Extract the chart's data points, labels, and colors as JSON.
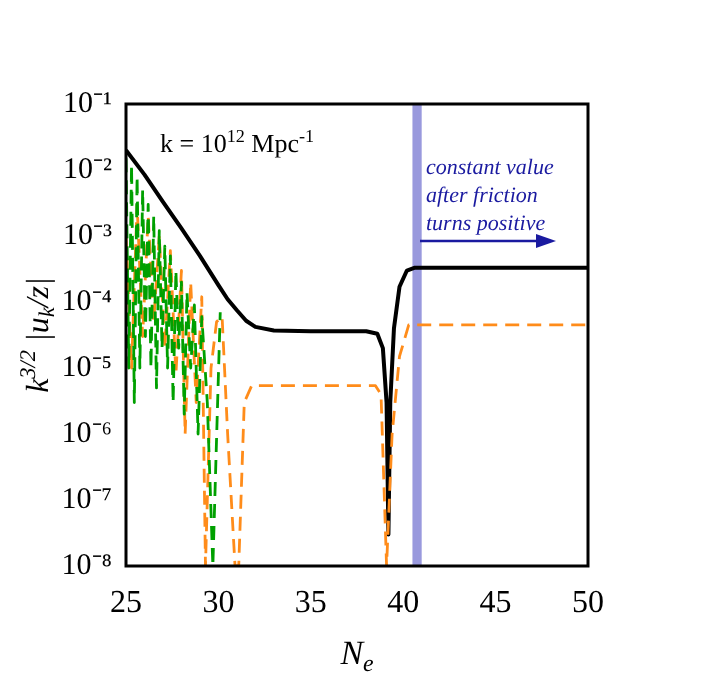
{
  "chart_data": {
    "type": "line",
    "xlabel": "N$_{e}$",
    "ylabel": "k$^{3/2}$ |u$_{k}$/z|",
    "xlim": [
      25,
      50
    ],
    "xticks": [
      25,
      30,
      35,
      40,
      45,
      50
    ],
    "ylim": [
      1e-08,
      0.1
    ],
    "log": "y",
    "yticks": [
      {
        "value": 0.1,
        "label": "10⁻¹"
      },
      {
        "value": 0.01,
        "label": "10⁻²"
      },
      {
        "value": 0.001,
        "label": "10⁻³"
      },
      {
        "value": 0.0001,
        "label": "10⁻⁴"
      },
      {
        "value": 1e-05,
        "label": "10⁻⁵"
      },
      {
        "value": 1e-06,
        "label": "10⁻⁶"
      },
      {
        "value": 1e-07,
        "label": "10⁻⁷"
      },
      {
        "value": 1e-08,
        "label": "10⁻⁸"
      }
    ],
    "grid": false,
    "legend": false,
    "series": [
      {
        "color": "#00a000",
        "line_style": "dashed",
        "x": [
          25,
          25.15,
          25.3,
          25.45,
          25.6,
          25.75,
          25.9,
          26.05,
          26.2,
          26.35,
          26.5,
          26.65,
          26.8,
          26.95,
          27.1,
          27.25,
          27.4,
          27.55,
          27.7,
          27.85,
          28,
          28.15,
          28.3,
          28.5,
          28.7,
          28.9,
          29.1,
          29.4,
          29.7,
          30.1
        ],
        "values": [
          0.015,
          1e-05,
          0.012,
          3e-06,
          0.008,
          1e-05,
          0.005,
          3e-05,
          0.003,
          1e-05,
          0.002,
          5e-06,
          0.0012,
          2e-05,
          0.0007,
          1e-05,
          0.0005,
          3e-06,
          0.0003,
          2e-05,
          0.0002,
          2e-06,
          0.00014,
          1e-05,
          9e-05,
          1e-06,
          6e-05,
          3e-06,
          1e-08,
          7e-05
        ]
      },
      {
        "color": "#ff8c1a",
        "line_style": "dashed",
        "x": [
          25,
          25.3,
          25.6,
          25.9,
          26.2,
          26.5,
          26.8,
          27.1,
          27.4,
          27.7,
          28,
          28.2,
          28.5,
          28.8,
          29.1,
          29.3,
          29.6,
          29.9,
          30.2,
          30.5,
          30.9,
          31.1,
          31.4,
          31.8,
          38.5,
          38.8,
          39.1,
          39.4,
          39.8,
          40.3,
          50
        ],
        "values": [
          0.001,
          1e-05,
          0.003,
          3e-05,
          0.002,
          5e-05,
          0.001,
          2e-05,
          0.0006,
          8e-06,
          0.0003,
          1e-06,
          0.0002,
          3e-06,
          0.00012,
          1e-08,
          1e-05,
          5e-05,
          6e-05,
          1e-06,
          1e-08,
          1e-08,
          3e-06,
          5.4e-06,
          5.4e-06,
          4e-06,
          1e-08,
          1e-06,
          1.5e-05,
          4.5e-05,
          4.5e-05
        ]
      },
      {
        "color": "#000000",
        "line_style": "solid",
        "x": [
          25,
          26,
          27,
          28,
          29,
          30,
          30.5,
          31,
          31.5,
          32,
          33,
          35,
          38,
          38.6,
          38.9,
          39.1,
          39.2,
          39.3,
          39.5,
          39.8,
          40.2,
          40.6,
          50
        ],
        "values": [
          0.02,
          0.0085,
          0.0033,
          0.0013,
          0.0005,
          0.00018,
          0.00011,
          7.5e-05,
          5.2e-05,
          4.2e-05,
          3.7e-05,
          3.6e-05,
          3.6e-05,
          3.3e-05,
          2e-05,
          3e-06,
          3e-08,
          3e-06,
          4e-05,
          0.00017,
          0.0003,
          0.00033,
          0.00033
        ]
      }
    ],
    "bands": [
      {
        "axis": "x",
        "from": 40.5,
        "to": 41.0,
        "color": "#9999dd"
      }
    ],
    "annotations": [
      "k = 10$^{12}$ Mpc$^{-1}$",
      "constant value after friction turns positive"
    ]
  }
}
